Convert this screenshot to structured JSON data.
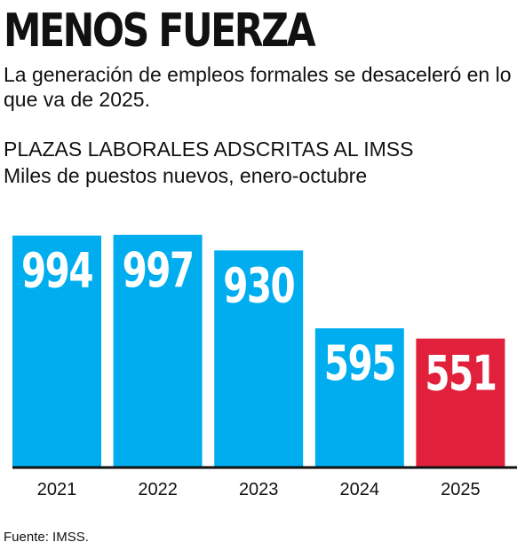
{
  "header": {
    "title": "MENOS FUERZA",
    "subtitle": "La generación de empleos formales se desaceleró en lo que va de 2025."
  },
  "chart_header": {
    "title": "PLAZAS LABORALES ADSCRITAS AL IMSS",
    "subtitle": "Miles de puestos nuevos, enero-octubre"
  },
  "chart_data": {
    "type": "bar",
    "title": "PLAZAS LABORALES ADSCRITAS AL IMSS",
    "subtitle": "Miles de puestos nuevos, enero-octubre",
    "xlabel": "",
    "ylabel": "",
    "categories": [
      "2021",
      "2022",
      "2023",
      "2024",
      "2025"
    ],
    "values": [
      994,
      997,
      930,
      595,
      551
    ],
    "ylim": [
      0,
      1000
    ],
    "grid": false,
    "legend": "none",
    "data_labels": true,
    "colors": {
      "default_bar": "#00adef",
      "highlight_bar": "#e1213b",
      "highlight_category": "2025",
      "axis": "#111111",
      "label_text": "#ffffff"
    }
  },
  "footer": {
    "source": "Fuente: IMSS."
  }
}
